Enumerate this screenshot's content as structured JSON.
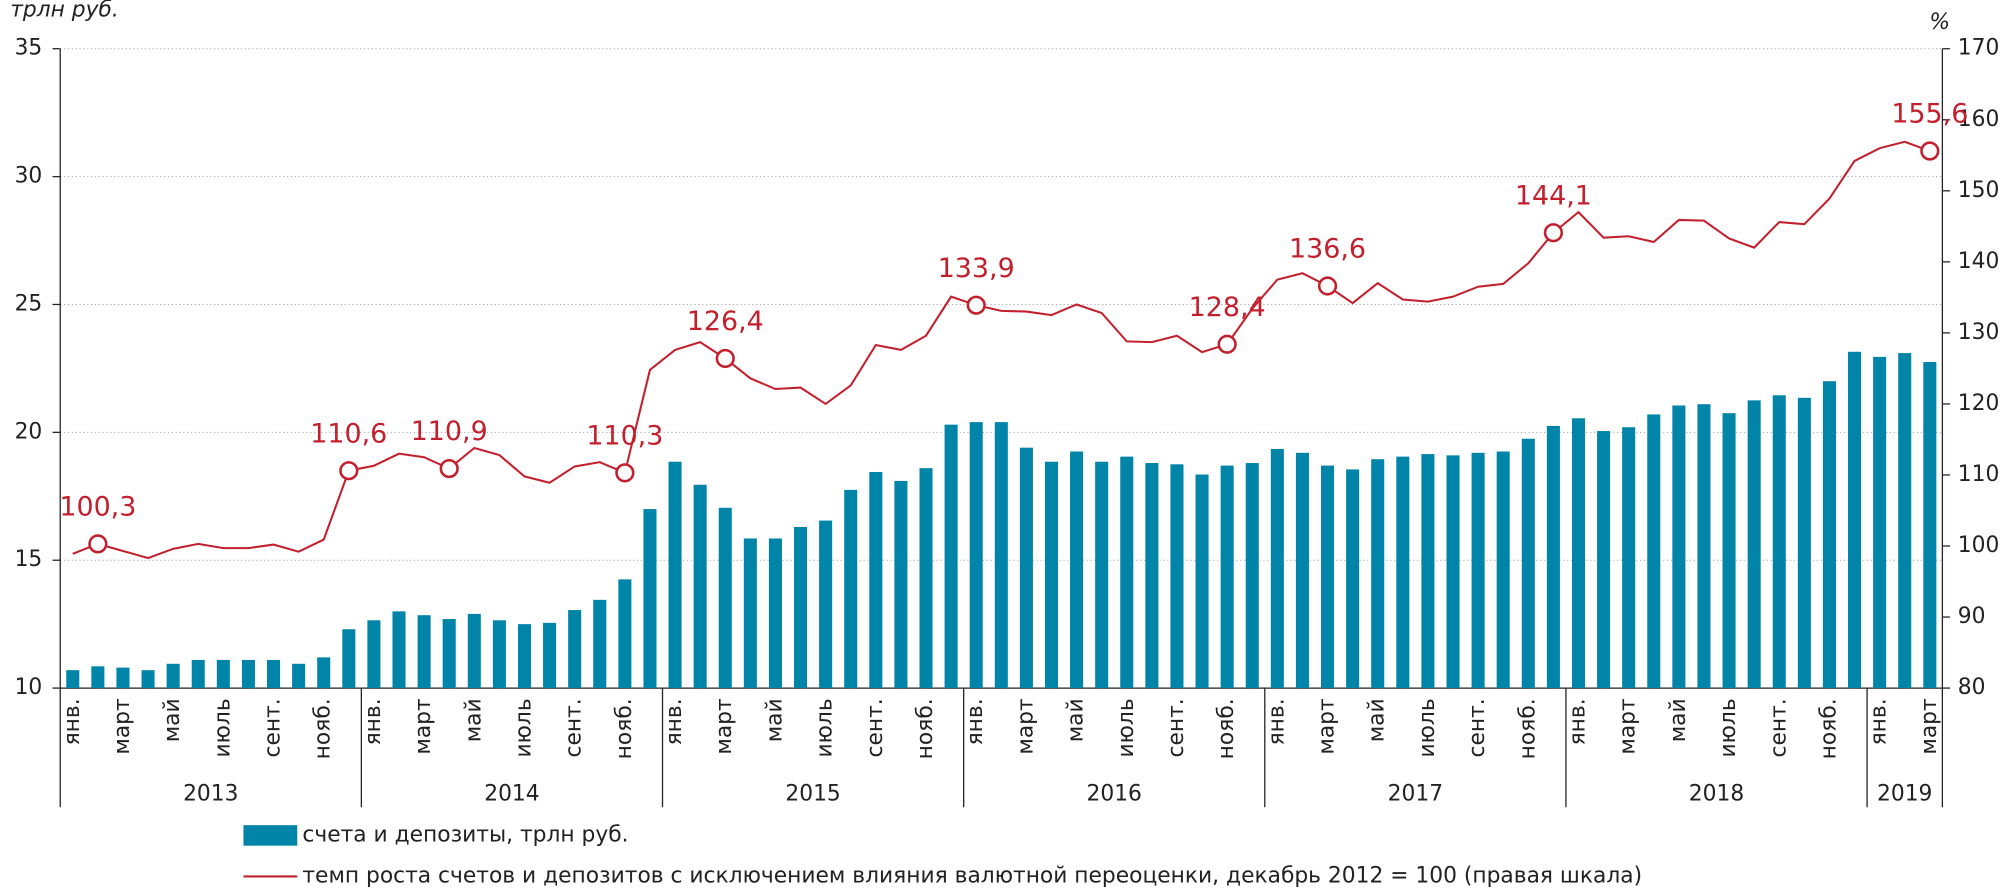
{
  "chart_data": {
    "type": "bar_line",
    "y_unit_label": "трлн руб.",
    "y2_unit_label": "%",
    "categories": [
      "янв.",
      null,
      "март",
      null,
      "май",
      null,
      "июль",
      null,
      "сент.",
      null,
      "нояб.",
      null,
      "янв.",
      null,
      "март",
      null,
      "май",
      null,
      "июль",
      null,
      "сент.",
      null,
      "нояб.",
      null,
      "янв.",
      null,
      "март",
      null,
      "май",
      null,
      "июль",
      null,
      "сент.",
      null,
      "нояб.",
      null,
      "янв.",
      null,
      "март",
      null,
      "май",
      null,
      "июль",
      null,
      "сент.",
      null,
      "нояб.",
      null,
      "янв.",
      null,
      "март",
      null,
      "май",
      null,
      "июль",
      null,
      "сент.",
      null,
      "нояб.",
      null,
      "янв.",
      null,
      "март",
      null,
      "май",
      null,
      "июль",
      null,
      "сент.",
      null,
      "нояб.",
      null,
      "янв.",
      null,
      "март"
    ],
    "years": [
      "2013",
      "2014",
      "2015",
      "2016",
      "2017",
      "2018",
      "2019"
    ],
    "ylim": [
      10,
      35
    ],
    "yticks": [
      10,
      15,
      20,
      25,
      30,
      35
    ],
    "y2lim": [
      80,
      170
    ],
    "y2ticks": [
      80,
      90,
      100,
      110,
      120,
      130,
      140,
      150,
      160,
      170
    ],
    "grid": true,
    "series": [
      {
        "name": "счета и депозиты, трлн руб.",
        "type": "bar",
        "color": "#0085a8",
        "values": [
          10.7,
          10.85,
          10.8,
          10.7,
          10.95,
          11.1,
          11.1,
          11.1,
          11.1,
          10.95,
          11.2,
          12.3,
          12.65,
          13.0,
          12.85,
          12.7,
          12.9,
          12.65,
          12.5,
          12.55,
          13.05,
          13.45,
          14.25,
          17.0,
          18.85,
          17.95,
          17.05,
          15.85,
          15.85,
          16.3,
          16.55,
          17.75,
          18.45,
          18.1,
          18.6,
          20.3,
          20.4,
          20.4,
          19.4,
          18.85,
          19.25,
          18.85,
          19.05,
          18.8,
          18.75,
          18.35,
          18.7,
          18.8,
          19.35,
          19.2,
          18.7,
          18.55,
          18.95,
          19.05,
          19.15,
          19.1,
          19.2,
          19.25,
          19.75,
          20.25,
          20.55,
          20.05,
          20.2,
          20.7,
          21.05,
          21.1,
          20.75,
          21.25,
          21.45,
          21.35,
          22.0,
          23.15,
          22.95,
          23.1,
          22.75
        ]
      },
      {
        "name": "темп роста счетов и депозитов с исключением влияния валютной переоценки, декабрь 2012 = 100 (правая шкала)",
        "type": "line",
        "axis": "y2",
        "color": "#c3202e",
        "values": [
          98.9,
          100.3,
          99.3,
          98.3,
          99.6,
          100.3,
          99.7,
          99.7,
          100.2,
          99.2,
          100.9,
          110.6,
          111.3,
          113.0,
          112.5,
          110.9,
          113.8,
          112.8,
          109.8,
          108.9,
          111.2,
          111.8,
          110.3,
          124.8,
          127.6,
          128.7,
          126.4,
          123.6,
          122.1,
          122.3,
          120.0,
          122.6,
          128.3,
          127.6,
          129.6,
          135.1,
          133.9,
          133.1,
          133.0,
          132.5,
          134.0,
          132.8,
          128.8,
          128.7,
          129.6,
          127.3,
          128.4,
          133.4,
          137.5,
          138.4,
          136.6,
          134.2,
          137.0,
          134.7,
          134.4,
          135.1,
          136.5,
          136.9,
          139.8,
          144.1,
          147.0,
          143.4,
          143.6,
          142.8,
          145.9,
          145.8,
          143.3,
          142.0,
          145.6,
          145.3,
          148.9,
          154.2,
          156.0,
          156.9,
          155.6
        ],
        "value_labels": [
          null,
          "100,3",
          null,
          null,
          null,
          null,
          null,
          null,
          null,
          null,
          null,
          "110,6",
          null,
          null,
          null,
          "110,9",
          null,
          null,
          null,
          null,
          null,
          null,
          "110,3",
          null,
          null,
          null,
          "126,4",
          null,
          null,
          null,
          null,
          null,
          null,
          null,
          null,
          null,
          "133,9",
          null,
          null,
          null,
          null,
          null,
          null,
          null,
          null,
          null,
          "128,4",
          null,
          null,
          null,
          "136,6",
          null,
          null,
          null,
          null,
          null,
          null,
          null,
          null,
          "144,1",
          null,
          null,
          null,
          null,
          null,
          null,
          null,
          null,
          null,
          null,
          null,
          null,
          null,
          null,
          "155,6"
        ]
      }
    ]
  }
}
